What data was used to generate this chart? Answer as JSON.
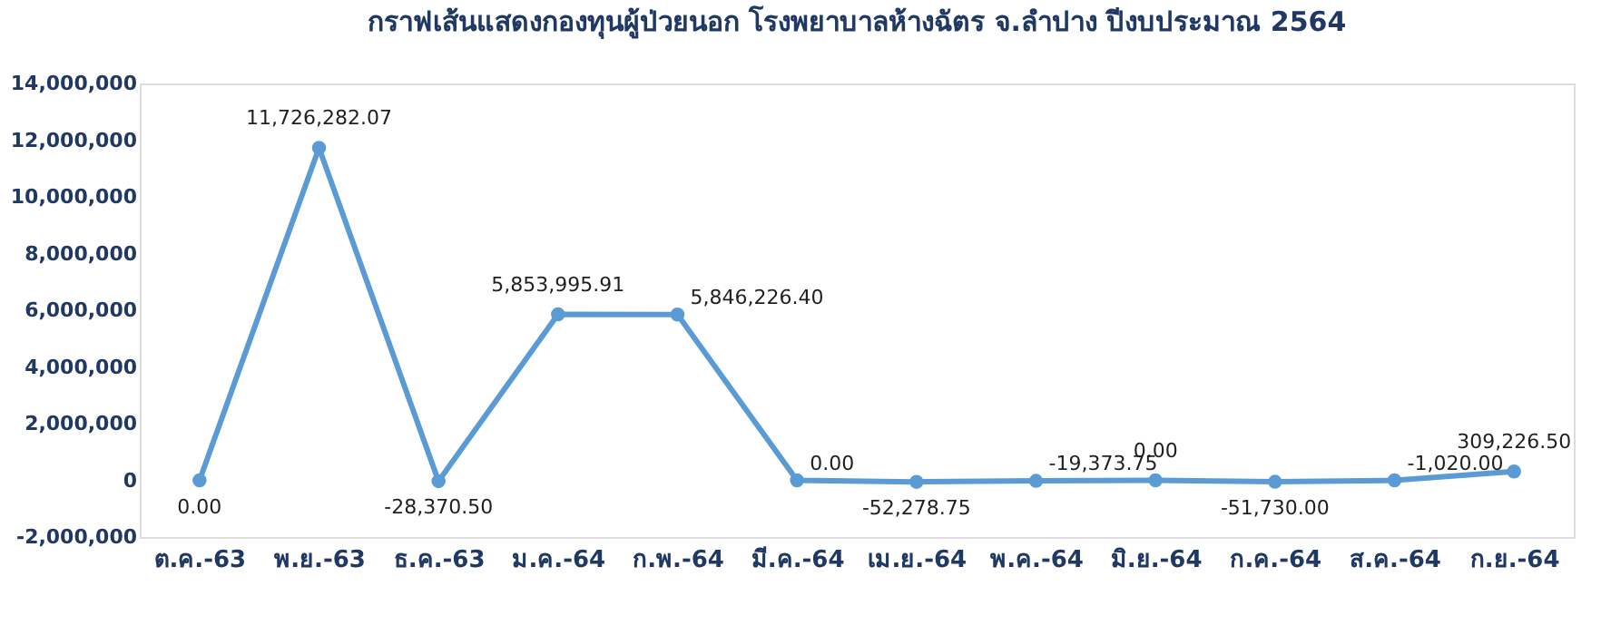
{
  "chart_data": {
    "type": "line",
    "title": "กราฟเส้นแสดงกองทุนผู้ป่วยนอก โรงพยาบาลห้างฉัตร จ.ลำปาง ปีงบประมาณ 2564",
    "categories": [
      "ต.ค.-63",
      "พ.ย.-63",
      "ธ.ค.-63",
      "ม.ค.-64",
      "ก.พ.-64",
      "มี.ค.-64",
      "เม.ย.-64",
      "พ.ค.-64",
      "มิ.ย.-64",
      "ก.ค.-64",
      "ส.ค.-64",
      "ก.ย.-64"
    ],
    "series": [
      {
        "color": "#5b9bd5",
        "values": [
          0,
          11726282.07,
          -28370.5,
          5853995.91,
          5846226.4,
          0,
          -52278.75,
          -19373.75,
          0,
          -51730,
          -1020,
          309226.5
        ],
        "value_labels": [
          "0.00",
          "11,726,282.07",
          "-28,370.50",
          "5,853,995.91",
          "5,846,226.40",
          "0.00",
          "-52,278.75",
          "-19,373.75",
          "0.00",
          "-51,730.00",
          "-1,020.00",
          "309,226.50"
        ]
      }
    ],
    "ylim": [
      -2000000,
      14000000
    ],
    "yticks": [
      {
        "value": -2000000,
        "label": "-2,000,000"
      },
      {
        "value": 0,
        "label": "0"
      },
      {
        "value": 2000000,
        "label": "2,000,000"
      },
      {
        "value": 4000000,
        "label": "4,000,000"
      },
      {
        "value": 6000000,
        "label": "6,000,000"
      },
      {
        "value": 8000000,
        "label": "8,000,000"
      },
      {
        "value": 10000000,
        "label": "10,000,000"
      },
      {
        "value": 12000000,
        "label": "12,000,000"
      },
      {
        "value": 14000000,
        "label": "14,000,000"
      }
    ],
    "marker": "circle",
    "line_style": "solid",
    "grid": false
  }
}
